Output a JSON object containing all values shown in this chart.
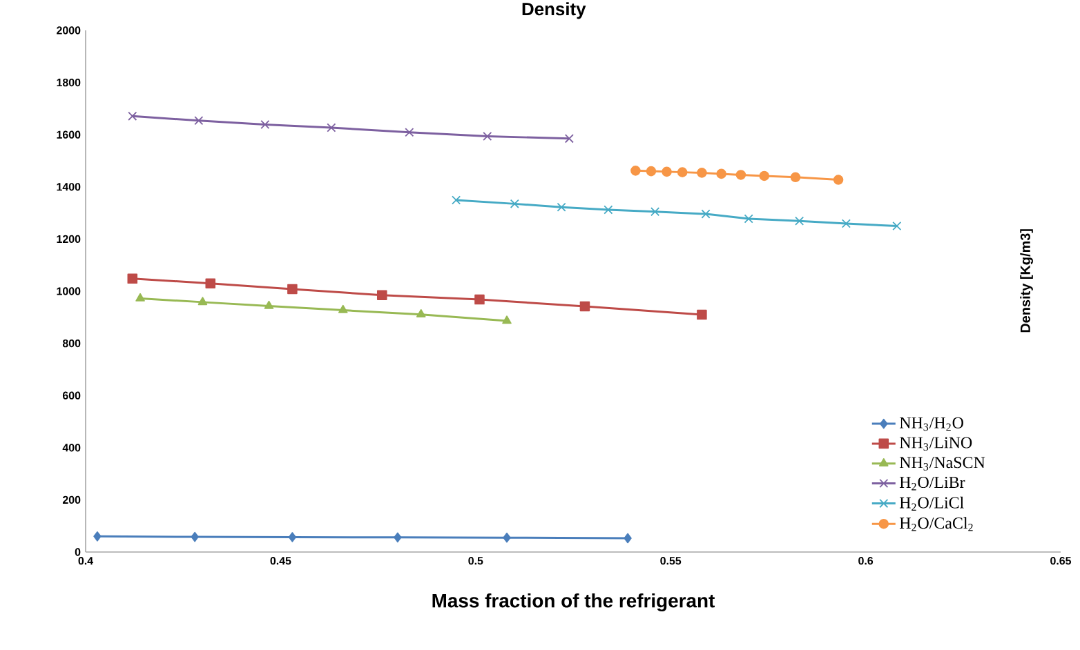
{
  "chart_data": {
    "type": "line",
    "title": "Density",
    "xlabel": "Mass fraction of the refrigerant",
    "ylabel": "Density  [Kg/m3]",
    "xlim": [
      0.4,
      0.65
    ],
    "xticks": [
      0.4,
      0.45,
      0.5,
      0.55,
      0.6,
      0.65
    ],
    "ylim": [
      0,
      2000
    ],
    "yticks": [
      0,
      200,
      400,
      600,
      800,
      1000,
      1200,
      1400,
      1600,
      1800,
      2000
    ],
    "grid": false,
    "legend": "bottom right",
    "line_style": "solid",
    "series": [
      {
        "name": "NH$_{3}$/H$_{2}$O",
        "color": "#4a7ebb",
        "marker": "diamond",
        "x": [
          0.403,
          0.428,
          0.453,
          0.48,
          0.508,
          0.539
        ],
        "values": [
          60,
          58,
          57,
          56,
          55,
          53
        ]
      },
      {
        "name": "NH$_{3}$/LiNO",
        "color": "#be4b48",
        "marker": "square",
        "x": [
          0.412,
          0.432,
          0.453,
          0.476,
          0.501,
          0.528,
          0.558
        ],
        "values": [
          1048,
          1030,
          1008,
          985,
          968,
          942,
          910
        ]
      },
      {
        "name": "NH$_{3}$/NaSCN",
        "color": "#98b954",
        "marker": "triangle",
        "x": [
          0.414,
          0.43,
          0.447,
          0.466,
          0.486,
          0.508
        ],
        "values": [
          972,
          958,
          943,
          927,
          911,
          886
        ]
      },
      {
        "name": "H$_{2}$O/LiBr",
        "color": "#7d60a0",
        "marker": "cross",
        "x": [
          0.412,
          0.429,
          0.446,
          0.463,
          0.483,
          0.503,
          0.524
        ],
        "values": [
          1671,
          1654,
          1639,
          1627,
          1609,
          1594,
          1585
        ]
      },
      {
        "name": "H$_{2}$O/LiCl",
        "color": "#46aac5",
        "marker": "cross",
        "x": [
          0.495,
          0.51,
          0.522,
          0.534,
          0.546,
          0.559,
          0.57,
          0.583,
          0.595,
          0.608
        ],
        "values": [
          1349,
          1335,
          1322,
          1312,
          1305,
          1296,
          1278,
          1269,
          1259,
          1250
        ]
      },
      {
        "name": "H$_{2}$O/CaCl$_{2}$",
        "color": "#f79646",
        "marker": "circle",
        "x": [
          0.541,
          0.545,
          0.549,
          0.553,
          0.558,
          0.563,
          0.568,
          0.574,
          0.582,
          0.593
        ],
        "values": [
          1462,
          1460,
          1458,
          1456,
          1454,
          1450,
          1446,
          1442,
          1437,
          1427
        ]
      }
    ]
  }
}
